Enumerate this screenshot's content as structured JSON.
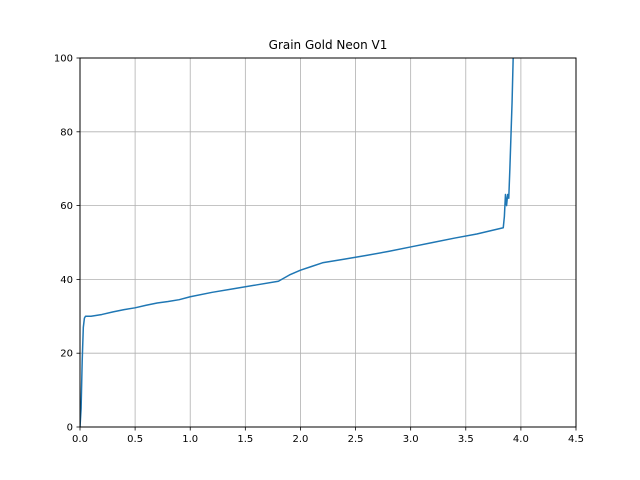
{
  "chart_data": {
    "type": "line",
    "title": "Grain Gold Neon V1",
    "xlabel": "",
    "ylabel": "",
    "xlim": [
      0.0,
      4.5
    ],
    "ylim": [
      0,
      100
    ],
    "x_ticks": [
      0.0,
      0.5,
      1.0,
      1.5,
      2.0,
      2.5,
      3.0,
      3.5,
      4.0,
      4.5
    ],
    "x_tick_labels": [
      "0.0",
      "0.5",
      "1.0",
      "1.5",
      "2.0",
      "2.5",
      "3.0",
      "3.5",
      "4.0",
      "4.5"
    ],
    "y_ticks": [
      0,
      20,
      40,
      60,
      80,
      100
    ],
    "y_tick_labels": [
      "0",
      "20",
      "40",
      "60",
      "80",
      "100"
    ],
    "grid": true,
    "series": [
      {
        "color": "#1f77b4",
        "x": [
          0.0,
          0.01,
          0.02,
          0.03,
          0.04,
          0.05,
          0.1,
          0.2,
          0.3,
          0.4,
          0.5,
          0.6,
          0.7,
          0.8,
          0.9,
          1.0,
          1.2,
          1.4,
          1.6,
          1.8,
          1.9,
          2.0,
          2.1,
          2.2,
          2.4,
          2.6,
          2.8,
          3.0,
          3.2,
          3.4,
          3.6,
          3.84,
          3.85,
          3.86,
          3.87,
          3.88,
          3.89,
          3.9,
          3.92,
          3.93
        ],
        "y": [
          0,
          5,
          18,
          27,
          29.5,
          30,
          30,
          30.5,
          31.2,
          31.8,
          32.3,
          33,
          33.6,
          34,
          34.5,
          35.3,
          36.5,
          37.5,
          38.5,
          39.5,
          41.2,
          42.5,
          43.5,
          44.5,
          45.5,
          46.5,
          47.6,
          48.8,
          50,
          51.2,
          52.3,
          54,
          57,
          63,
          60,
          63,
          62,
          70,
          88,
          100
        ]
      }
    ]
  }
}
